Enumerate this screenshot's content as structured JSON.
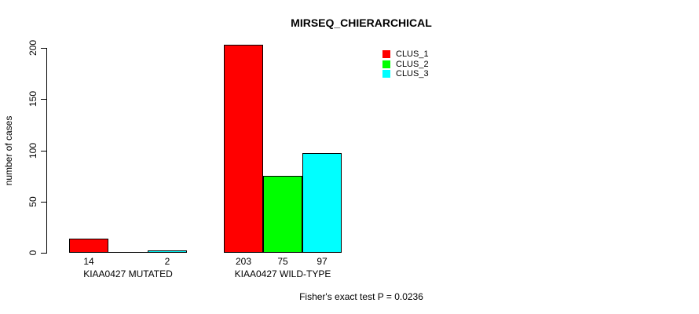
{
  "title": "MIRSEQ_CHIERARCHICAL",
  "y_axis": {
    "label": "number of cases",
    "ticks": [
      0,
      50,
      100,
      150,
      200
    ]
  },
  "legend": {
    "items": [
      {
        "label": "CLUS_1",
        "color": "#ff0000"
      },
      {
        "label": "CLUS_2",
        "color": "#00ff00"
      },
      {
        "label": "CLUS_3",
        "color": "#00ffff"
      }
    ]
  },
  "footer": "Fisher's exact test P = 0.0236",
  "chart_data": {
    "type": "bar",
    "title": "MIRSEQ_CHIERARCHICAL",
    "xlabel": "",
    "ylabel": "number of cases",
    "ylim": [
      0,
      200
    ],
    "grid": false,
    "legend_position": "top-right",
    "categories": [
      "KIAA0427 MUTATED",
      "KIAA0427 WILD-TYPE"
    ],
    "series": [
      {
        "name": "CLUS_1",
        "color": "#ff0000",
        "values": [
          14,
          203
        ]
      },
      {
        "name": "CLUS_2",
        "color": "#00ff00",
        "values": [
          0,
          75
        ]
      },
      {
        "name": "CLUS_3",
        "color": "#00ffff",
        "values": [
          2,
          97
        ]
      }
    ],
    "bar_value_labels_shown": [
      [
        14,
        null,
        2
      ],
      [
        203,
        75,
        97
      ]
    ],
    "annotation": "Fisher's exact test P = 0.0236"
  }
}
